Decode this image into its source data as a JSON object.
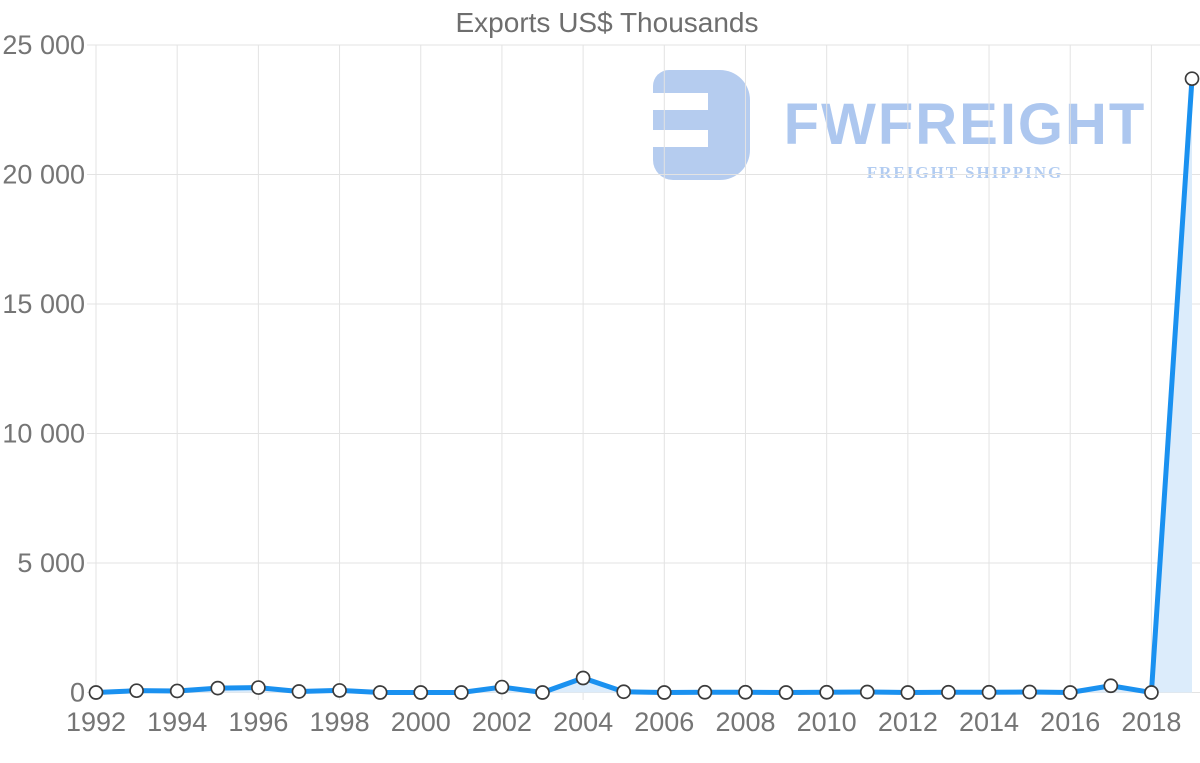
{
  "chart_data": {
    "type": "area",
    "title": "Exports US$ Thousands",
    "xlabel": "",
    "ylabel": "",
    "x": [
      1992,
      1993,
      1994,
      1995,
      1996,
      1997,
      1998,
      1999,
      2000,
      2001,
      2002,
      2003,
      2004,
      2005,
      2006,
      2007,
      2008,
      2009,
      2010,
      2011,
      2012,
      2013,
      2014,
      2015,
      2016,
      2017,
      2018,
      2019
    ],
    "series": [
      {
        "name": "Exports US$ Thousands",
        "values": [
          0,
          70,
          60,
          170,
          190,
          40,
          80,
          0,
          0,
          0,
          210,
          0,
          560,
          30,
          0,
          10,
          10,
          0,
          10,
          20,
          0,
          10,
          10,
          20,
          0,
          260,
          0,
          23700
        ]
      }
    ],
    "ylim": [
      0,
      25000
    ],
    "y_ticks": [
      0,
      5000,
      10000,
      15000,
      20000,
      25000
    ],
    "y_tick_labels": [
      "0",
      "5 000",
      "10 000",
      "15 000",
      "20 000",
      "25 000"
    ],
    "x_tick_years": [
      1992,
      1994,
      1996,
      1998,
      2000,
      2002,
      2004,
      2006,
      2008,
      2010,
      2012,
      2014,
      2016,
      2018
    ],
    "x_tick_labels": [
      "1992",
      "1994",
      "1996",
      "1998",
      "2000",
      "2002",
      "2004",
      "2006",
      "2008",
      "2010",
      "2012",
      "2014",
      "2016",
      "2018"
    ],
    "grid": true,
    "legend": "none",
    "marker": "circle"
  },
  "watermark": {
    "brand": "FWFREIGHT",
    "tagline": "FREIGHT SHIPPING"
  },
  "colors": {
    "line": "#1a91f0",
    "area_fill": "#dcecfb",
    "grid": "#e3e3e3",
    "axis_text": "#757575",
    "title_text": "#6e6e6e",
    "marker_fill": "#ffffff",
    "marker_border": "#3b3b3b",
    "logo_icon": "#aec7ee",
    "logo_brand": "#a5c2ee",
    "logo_tagline": "#aac7f0"
  }
}
